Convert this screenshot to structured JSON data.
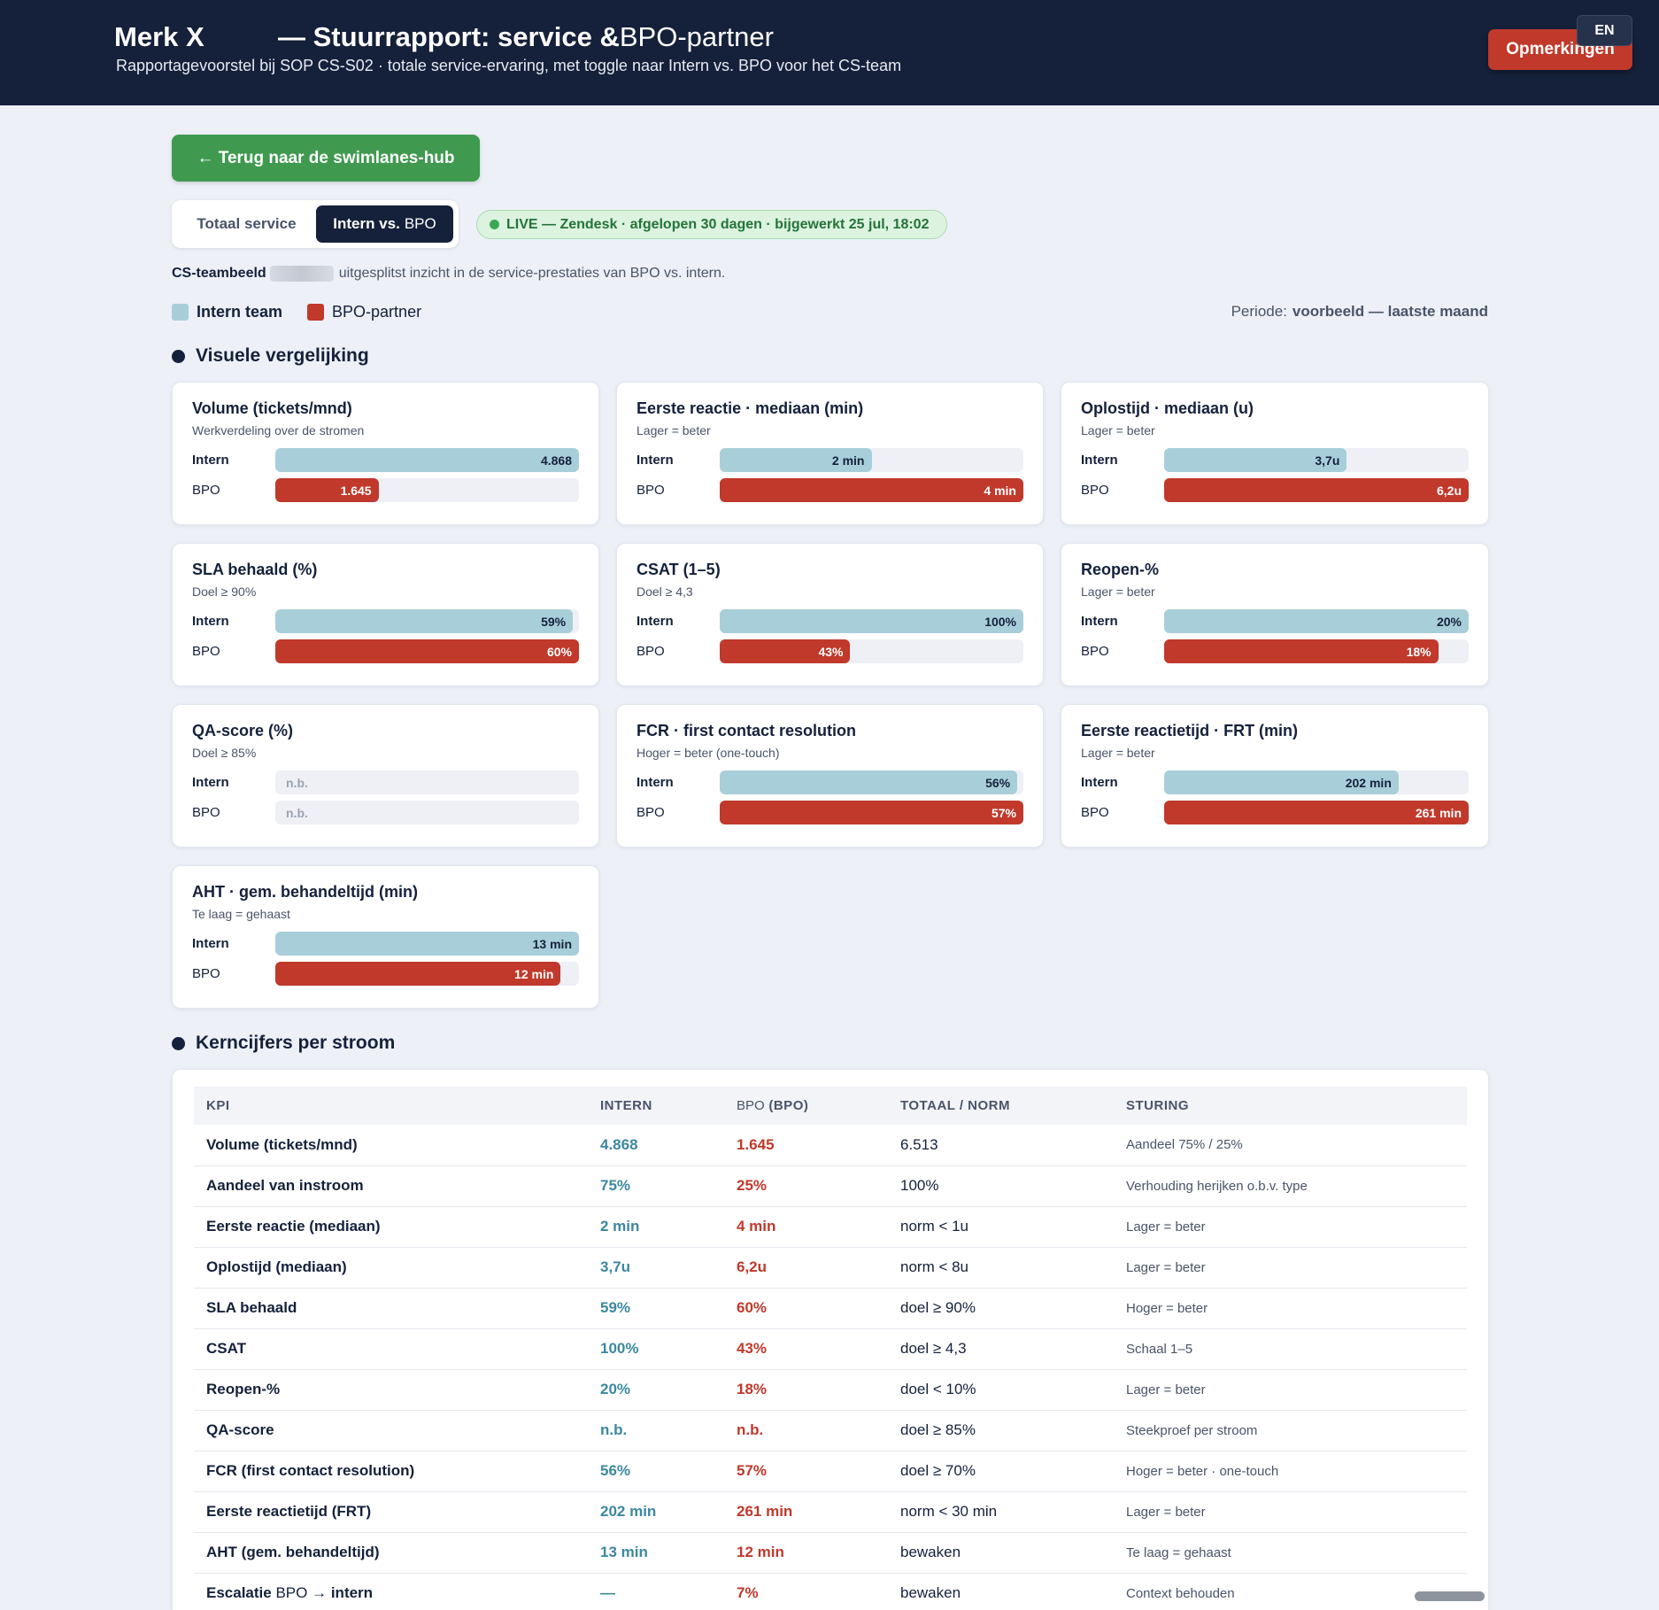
{
  "header": {
    "brand": "Merk X",
    "title_bold": "— Stuurrapport: service &",
    "title_rest": "BPO-partner",
    "subtitle": "Rapportagevoorstel bij SOP CS-S02 · totale service-ervaring, met toggle naar Intern vs. BPO voor het CS-team",
    "remarks_label": "Opmerkingen",
    "lang_label": "EN"
  },
  "nav": {
    "back_label": "← Terug naar de swimlanes-hub"
  },
  "toggle": {
    "total_label": "Totaal service",
    "compare_bold": "Intern vs.",
    "compare_small": "BPO"
  },
  "live_badge": "LIVE — Zendesk · afgelopen 30 dagen · bijgewerkt 25 jul, 18:02",
  "teamline": {
    "label": "CS-teambeeld",
    "text": "uitgesplitst inzicht in de service-prestaties van BPO vs. intern."
  },
  "legend": {
    "intern_label": "Intern team",
    "bpo_label": "BPO-partner",
    "intern_color": "#a8cfd9",
    "bpo_color": "#c0392b"
  },
  "period": {
    "label": "Periode:",
    "value": "voorbeeld — laatste maand"
  },
  "sections": {
    "visual": "Visuele vergelijking",
    "kpis": "Kerncijfers per stroom"
  },
  "row_labels": {
    "intern": "Intern",
    "bpo": "BPO"
  },
  "cards": [
    {
      "title": "Volume (tickets/mnd)",
      "sub": "Werkverdeling over de stromen",
      "intern": {
        "text": "4.868",
        "fill": 1.0
      },
      "bpo": {
        "text": "1.645",
        "fill": 0.34
      }
    },
    {
      "title": "Eerste reactie · mediaan (min)",
      "sub": "Lager = beter",
      "intern": {
        "text": "2 min",
        "fill": 0.5
      },
      "bpo": {
        "text": "4 min",
        "fill": 1.0
      }
    },
    {
      "title": "Oplostijd · mediaan (u)",
      "sub": "Lager = beter",
      "intern": {
        "text": "3,7u",
        "fill": 0.6
      },
      "bpo": {
        "text": "6,2u",
        "fill": 1.0
      }
    },
    {
      "title": "SLA behaald (%)",
      "sub": "Doel ≥ 90%",
      "intern": {
        "text": "59%",
        "fill": 0.98
      },
      "bpo": {
        "text": "60%",
        "fill": 1.0
      }
    },
    {
      "title": "CSAT (1–5)",
      "sub": "Doel ≥ 4,3",
      "intern": {
        "text": "100%",
        "fill": 1.0
      },
      "bpo": {
        "text": "43%",
        "fill": 0.43
      }
    },
    {
      "title": "Reopen-%",
      "sub": "Lager = beter",
      "intern": {
        "text": "20%",
        "fill": 1.0
      },
      "bpo": {
        "text": "18%",
        "fill": 0.9
      }
    },
    {
      "title": "QA-score (%)",
      "sub": "Doel ≥ 85%",
      "intern": {
        "text": "n.b.",
        "fill": 0
      },
      "bpo": {
        "text": "n.b.",
        "fill": 0
      }
    },
    {
      "title": "FCR · first contact resolution",
      "sub": "Hoger = beter (one-touch)",
      "intern": {
        "text": "56%",
        "fill": 0.98
      },
      "bpo": {
        "text": "57%",
        "fill": 1.0
      }
    },
    {
      "title": "Eerste reactietijd · FRT (min)",
      "sub": "Lager = beter",
      "intern": {
        "text": "202 min",
        "fill": 0.77
      },
      "bpo": {
        "text": "261 min",
        "fill": 1.0
      }
    },
    {
      "title": "AHT · gem. behandeltijd (min)",
      "sub": "Te laag = gehaast",
      "intern": {
        "text": "13 min",
        "fill": 1.0
      },
      "bpo": {
        "text": "12 min",
        "fill": 0.94
      }
    }
  ],
  "table": {
    "headers": {
      "kpi": "KPI",
      "intern": "INTERN",
      "bpo_small": "BPO",
      "bpo_rest": "(BPO)",
      "total": "TOTAAL / NORM",
      "sturing": "STURING"
    },
    "rows": [
      {
        "kpi": "Volume (tickets/mnd)",
        "intern": "4.868",
        "bpo": "1.645",
        "total": "6.513",
        "sturing": "Aandeel 75% / 25%"
      },
      {
        "kpi": "Aandeel van instroom",
        "intern": "75%",
        "bpo": "25%",
        "total": "100%",
        "sturing": "Verhouding herijken o.b.v. type"
      },
      {
        "kpi": "Eerste reactie (mediaan)",
        "intern": "2 min",
        "bpo": "4 min",
        "total": "norm < 1u",
        "sturing": "Lager = beter"
      },
      {
        "kpi": "Oplostijd (mediaan)",
        "intern": "3,7u",
        "bpo": "6,2u",
        "total": "norm < 8u",
        "sturing": "Lager = beter"
      },
      {
        "kpi": "SLA behaald",
        "intern": "59%",
        "bpo": "60%",
        "total": "doel ≥ 90%",
        "sturing": "Hoger = beter"
      },
      {
        "kpi": "CSAT",
        "intern": "100%",
        "bpo": "43%",
        "total": "doel ≥ 4,3",
        "sturing": "Schaal 1–5"
      },
      {
        "kpi": "Reopen-%",
        "intern": "20%",
        "bpo": "18%",
        "total": "doel < 10%",
        "sturing": "Lager = beter"
      },
      {
        "kpi": "QA-score",
        "intern": "n.b.",
        "bpo": "n.b.",
        "total": "doel ≥ 85%",
        "sturing": "Steekproef per stroom"
      },
      {
        "kpi": "FCR (first contact resolution)",
        "intern": "56%",
        "bpo": "57%",
        "total": "doel ≥ 70%",
        "sturing": "Hoger = beter · one-touch"
      },
      {
        "kpi": "Eerste reactietijd (FRT)",
        "intern": "202 min",
        "bpo": "261 min",
        "total": "norm < 30 min",
        "sturing": "Lager = beter"
      },
      {
        "kpi": "AHT (gem. behandeltijd)",
        "intern": "13 min",
        "bpo": "12 min",
        "total": "bewaken",
        "sturing": "Te laag = gehaast"
      },
      {
        "kpi": "Escalatie",
        "kpi_mid": "BPO",
        "kpi_end": "→ intern",
        "intern": "—",
        "bpo": "7%",
        "total": "bewaken",
        "sturing": "Context behouden"
      }
    ]
  }
}
